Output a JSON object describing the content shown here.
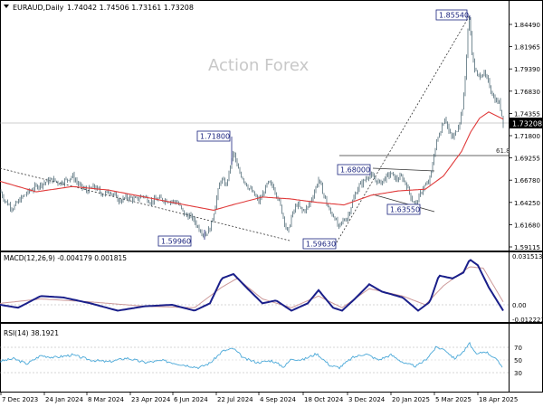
{
  "header": {
    "symbol": "EURAUD,Daily",
    "ohlc": "1.74042 1.74506 1.73161 1.73208"
  },
  "watermark": "Action Forex",
  "price_axis": {
    "ticks": [
      "1.84490",
      "1.81965",
      "1.79390",
      "1.76830",
      "1.74355",
      "1.71800",
      "1.69255",
      "1.66780",
      "1.64250",
      "1.61680",
      "1.59115"
    ],
    "current_label": "1.73208"
  },
  "fib": {
    "label": "61.8",
    "level": 1.695
  },
  "annotations": [
    "1.85540",
    "1.71800",
    "1.68000",
    "1.63550",
    "1.59960",
    "1.59630"
  ],
  "macd": {
    "label": "MACD(12,26,9) -0.004179 0.001815",
    "ticks": [
      "0.031513",
      "0.00",
      "-0.012223"
    ]
  },
  "rsi": {
    "label": "RSI(14) 38.1921",
    "ticks": [
      "70",
      "50",
      "30"
    ]
  },
  "x_axis": [
    "7 Dec 2023",
    "24 Jan 2024",
    "8 Mar 2024",
    "23 Apr 2024",
    "6 Jun 2024",
    "22 Jul 2024",
    "4 Sep 2024",
    "18 Oct 2024",
    "3 Dec 2024",
    "20 Jan 2025",
    "5 Mar 2025",
    "18 Apr 2025"
  ],
  "colors": {
    "candles": "#3d5a66",
    "ma": "#e03a3a",
    "macd": "#1a1f8a",
    "signal": "#cc9999",
    "rsi": "#4aa8d8",
    "label_border": "#1a237e"
  },
  "chart_data": {
    "type": "candlestick",
    "price_knots": [
      [
        0,
        1.655
      ],
      [
        6,
        1.643
      ],
      [
        14,
        1.635
      ],
      [
        22,
        1.645
      ],
      [
        30,
        1.653
      ],
      [
        40,
        1.66
      ],
      [
        50,
        1.665
      ],
      [
        58,
        1.668
      ],
      [
        66,
        1.664
      ],
      [
        74,
        1.668
      ],
      [
        80,
        1.672
      ],
      [
        88,
        1.661
      ],
      [
        96,
        1.655
      ],
      [
        104,
        1.66
      ],
      [
        114,
        1.651
      ],
      [
        122,
        1.655
      ],
      [
        132,
        1.643
      ],
      [
        140,
        1.648
      ],
      [
        150,
        1.645
      ],
      [
        158,
        1.65
      ],
      [
        166,
        1.643
      ],
      [
        176,
        1.646
      ],
      [
        186,
        1.644
      ],
      [
        196,
        1.642
      ],
      [
        204,
        1.628
      ],
      [
        212,
        1.625
      ],
      [
        220,
        1.612
      ],
      [
        226,
        1.605
      ],
      [
        232,
        1.612
      ],
      [
        236,
        1.628
      ],
      [
        240,
        1.65
      ],
      [
        244,
        1.668
      ],
      [
        250,
        1.662
      ],
      [
        254,
        1.68
      ],
      [
        258,
        1.7
      ],
      [
        262,
        1.682
      ],
      [
        268,
        1.67
      ],
      [
        274,
        1.66
      ],
      [
        280,
        1.652
      ],
      [
        286,
        1.643
      ],
      [
        290,
        1.65
      ],
      [
        296,
        1.664
      ],
      [
        302,
        1.66
      ],
      [
        308,
        1.645
      ],
      [
        314,
        1.622
      ],
      [
        318,
        1.606
      ],
      [
        322,
        1.625
      ],
      [
        328,
        1.64
      ],
      [
        334,
        1.632
      ],
      [
        340,
        1.636
      ],
      [
        346,
        1.65
      ],
      [
        352,
        1.668
      ],
      [
        358,
        1.65
      ],
      [
        364,
        1.632
      ],
      [
        370,
        1.625
      ],
      [
        374,
        1.612
      ],
      [
        378,
        1.62
      ],
      [
        384,
        1.625
      ],
      [
        390,
        1.644
      ],
      [
        396,
        1.66
      ],
      [
        402,
        1.666
      ],
      [
        408,
        1.674
      ],
      [
        414,
        1.668
      ],
      [
        420,
        1.664
      ],
      [
        426,
        1.67
      ],
      [
        432,
        1.675
      ],
      [
        438,
        1.668
      ],
      [
        444,
        1.671
      ],
      [
        450,
        1.66
      ],
      [
        456,
        1.643
      ],
      [
        460,
        1.641
      ],
      [
        464,
        1.65
      ],
      [
        468,
        1.66
      ],
      [
        472,
        1.662
      ],
      [
        476,
        1.672
      ],
      [
        480,
        1.7
      ],
      [
        484,
        1.716
      ],
      [
        488,
        1.728
      ],
      [
        492,
        1.74
      ],
      [
        496,
        1.722
      ],
      [
        500,
        1.715
      ],
      [
        504,
        1.722
      ],
      [
        508,
        1.735
      ],
      [
        512,
        1.755
      ],
      [
        515,
        1.8
      ],
      [
        517,
        1.84
      ],
      [
        519,
        1.852
      ],
      [
        521,
        1.818
      ],
      [
        524,
        1.795
      ],
      [
        528,
        1.785
      ],
      [
        534,
        1.79
      ],
      [
        540,
        1.778
      ],
      [
        546,
        1.76
      ],
      [
        552,
        1.755
      ],
      [
        556,
        1.733
      ]
    ],
    "ma_knots": [
      [
        0,
        1.666
      ],
      [
        40,
        1.654
      ],
      [
        80,
        1.66
      ],
      [
        120,
        1.656
      ],
      [
        160,
        1.648
      ],
      [
        200,
        1.64
      ],
      [
        236,
        1.633
      ],
      [
        260,
        1.64
      ],
      [
        290,
        1.648
      ],
      [
        320,
        1.646
      ],
      [
        350,
        1.642
      ],
      [
        380,
        1.639
      ],
      [
        410,
        1.65
      ],
      [
        440,
        1.655
      ],
      [
        470,
        1.657
      ],
      [
        490,
        1.672
      ],
      [
        510,
        1.7
      ],
      [
        520,
        1.722
      ],
      [
        530,
        1.738
      ],
      [
        540,
        1.745
      ],
      [
        556,
        1.737
      ]
    ],
    "macd_knots": [
      [
        0,
        0.0
      ],
      [
        20,
        -0.002
      ],
      [
        45,
        0.006
      ],
      [
        70,
        0.005
      ],
      [
        100,
        0.001
      ],
      [
        130,
        -0.004
      ],
      [
        160,
        -0.001
      ],
      [
        190,
        0.0
      ],
      [
        215,
        -0.004
      ],
      [
        232,
        0.001
      ],
      [
        245,
        0.018
      ],
      [
        258,
        0.021
      ],
      [
        272,
        0.012
      ],
      [
        290,
        0.001
      ],
      [
        305,
        0.003
      ],
      [
        322,
        -0.004
      ],
      [
        340,
        0.001
      ],
      [
        352,
        0.01
      ],
      [
        368,
        -0.002
      ],
      [
        378,
        -0.004
      ],
      [
        392,
        0.004
      ],
      [
        408,
        0.014
      ],
      [
        422,
        0.009
      ],
      [
        445,
        0.005
      ],
      [
        462,
        -0.004
      ],
      [
        475,
        0.002
      ],
      [
        485,
        0.02
      ],
      [
        500,
        0.018
      ],
      [
        512,
        0.022
      ],
      [
        519,
        0.031
      ],
      [
        528,
        0.027
      ],
      [
        540,
        0.012
      ],
      [
        556,
        -0.004
      ]
    ],
    "signal_knots": [
      [
        0,
        0.001
      ],
      [
        45,
        0.004
      ],
      [
        100,
        0.002
      ],
      [
        160,
        -0.001
      ],
      [
        215,
        -0.002
      ],
      [
        245,
        0.012
      ],
      [
        262,
        0.018
      ],
      [
        290,
        0.004
      ],
      [
        322,
        -0.002
      ],
      [
        352,
        0.006
      ],
      [
        378,
        -0.002
      ],
      [
        408,
        0.011
      ],
      [
        445,
        0.006
      ],
      [
        470,
        0.0
      ],
      [
        490,
        0.013
      ],
      [
        519,
        0.026
      ],
      [
        534,
        0.025
      ],
      [
        556,
        0.002
      ]
    ],
    "rsi_knots": [
      [
        0,
        48
      ],
      [
        15,
        52
      ],
      [
        30,
        44
      ],
      [
        45,
        57
      ],
      [
        60,
        54
      ],
      [
        80,
        58
      ],
      [
        100,
        50
      ],
      [
        120,
        47
      ],
      [
        140,
        53
      ],
      [
        160,
        46
      ],
      [
        180,
        49
      ],
      [
        200,
        43
      ],
      [
        220,
        38
      ],
      [
        232,
        45
      ],
      [
        246,
        64
      ],
      [
        258,
        68
      ],
      [
        270,
        52
      ],
      [
        285,
        46
      ],
      [
        300,
        49
      ],
      [
        314,
        39
      ],
      [
        322,
        52
      ],
      [
        334,
        50
      ],
      [
        350,
        60
      ],
      [
        365,
        41
      ],
      [
        375,
        38
      ],
      [
        390,
        54
      ],
      [
        404,
        60
      ],
      [
        418,
        50
      ],
      [
        432,
        58
      ],
      [
        448,
        44
      ],
      [
        460,
        40
      ],
      [
        470,
        50
      ],
      [
        482,
        70
      ],
      [
        492,
        66
      ],
      [
        502,
        52
      ],
      [
        512,
        63
      ],
      [
        519,
        76
      ],
      [
        526,
        58
      ],
      [
        536,
        64
      ],
      [
        546,
        54
      ],
      [
        556,
        38
      ]
    ]
  }
}
